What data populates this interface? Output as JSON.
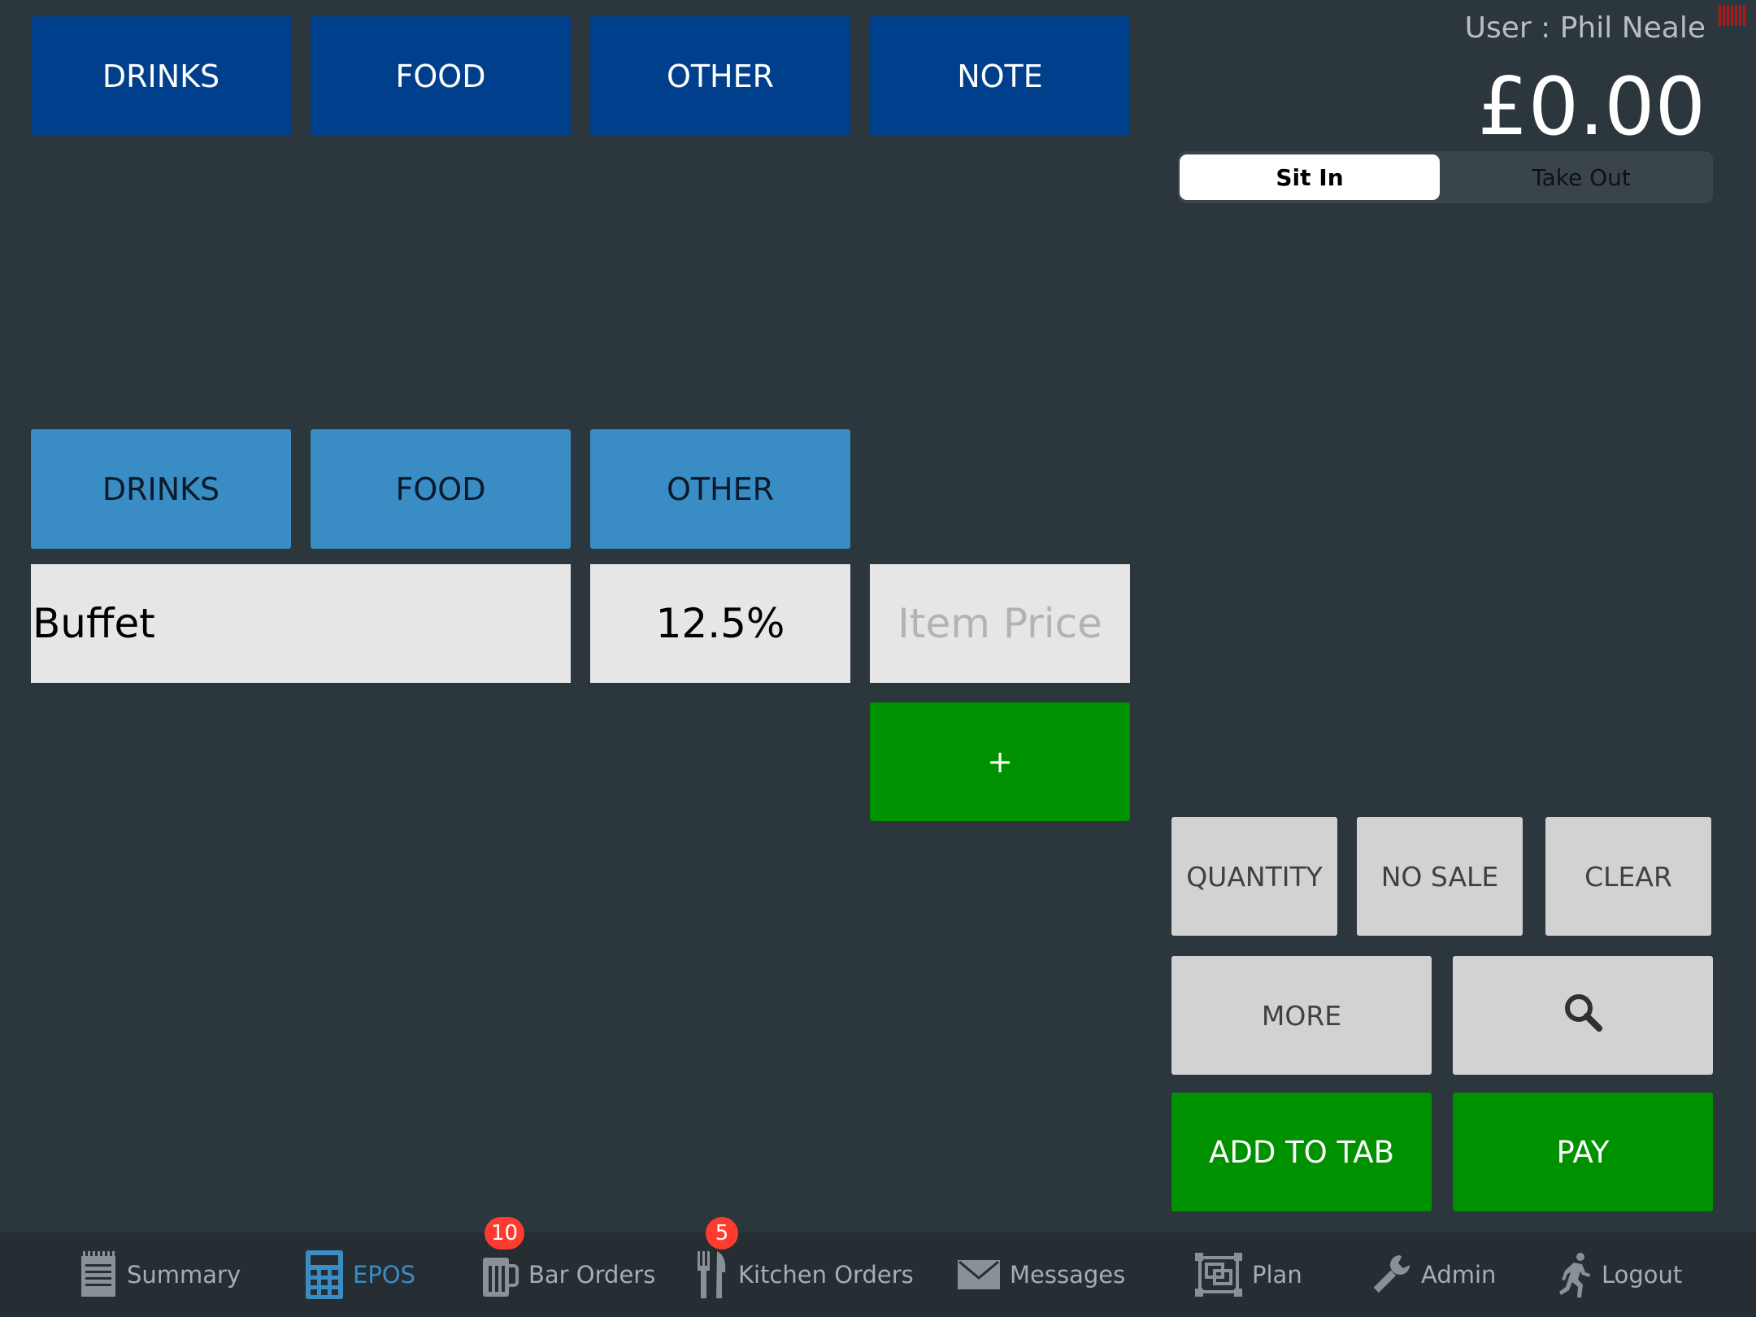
{
  "top_categories": [
    "DRINKS",
    "FOOD",
    "OTHER",
    "NOTE"
  ],
  "sub_categories": [
    "DRINKS",
    "FOOD",
    "OTHER"
  ],
  "entry": {
    "item_name": "Buffet",
    "vat_rate": "12.5%",
    "price_placeholder": "Item Price",
    "add_label": "+"
  },
  "header": {
    "user_label": "User : Phil Neale",
    "total": "£0.00"
  },
  "order_type": {
    "options": [
      "Sit In",
      "Take Out"
    ],
    "selected": "Sit In"
  },
  "actions": {
    "quantity": "QUANTITY",
    "no_sale": "NO SALE",
    "clear": "CLEAR",
    "more": "MORE",
    "add_to_tab": "ADD TO TAB",
    "pay": "PAY"
  },
  "tabbar": {
    "items": [
      {
        "label": "Summary",
        "icon": "notepad-icon"
      },
      {
        "label": "EPOS",
        "icon": "calculator-icon",
        "active": true
      },
      {
        "label": "Bar Orders",
        "icon": "beer-mug-icon",
        "badge": "10"
      },
      {
        "label": "Kitchen Orders",
        "icon": "fork-knife-icon",
        "badge": "5"
      },
      {
        "label": "Messages",
        "icon": "envelope-icon"
      },
      {
        "label": "Plan",
        "icon": "floor-plan-icon"
      },
      {
        "label": "Admin",
        "icon": "wrench-icon"
      },
      {
        "label": "Logout",
        "icon": "running-person-icon"
      }
    ]
  },
  "colors": {
    "background": "#2c363d",
    "category_primary": "#003f8c",
    "category_secondary": "#3a8cc4",
    "action_green": "#009100",
    "action_gray": "#d2d2d2",
    "badge_red": "#ff3b30",
    "tab_active": "#3a8cc4"
  }
}
